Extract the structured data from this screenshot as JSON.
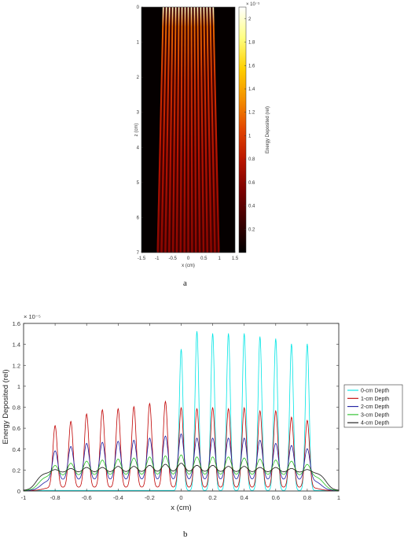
{
  "panel_labels": [
    "a",
    "b"
  ],
  "colors": {
    "cmap": [
      "#000000",
      "#3a0000",
      "#7a0000",
      "#b81400",
      "#e24400",
      "#f49000",
      "#ffd000",
      "#ffff80",
      "#ffffff"
    ],
    "series": [
      "#00e5e5",
      "#c00000",
      "#1a1aa0",
      "#22c022",
      "#111111"
    ]
  },
  "chart_data": [
    {
      "type": "heatmap",
      "title": "",
      "xlabel": "x (cm)",
      "ylabel": "z (cm)",
      "xlim": [
        -1.5,
        1.5
      ],
      "ylim": [
        0,
        7
      ],
      "y_reversed": true,
      "x_ticks": [
        "-1.5",
        "-1",
        "-0.5",
        "0",
        "0.5",
        "1",
        "1.5"
      ],
      "y_ticks": [
        "0",
        "1",
        "2",
        "3",
        "4",
        "5",
        "6",
        "7"
      ],
      "colorbar": {
        "label": "Energy Deposited (rel)",
        "exponent": "× 10⁻⁵",
        "range": [
          0,
          2.1
        ],
        "ticks": [
          "0.2",
          "0.4",
          "0.6",
          "0.8",
          "1",
          "1.2",
          "1.4",
          "1.6",
          "1.8",
          "2"
        ]
      },
      "beamlets": {
        "count": 17,
        "x_start_at_surface": [
          -0.8,
          0.8
        ],
        "x_extent_at_depth_7": [
          -0.98,
          0.98
        ],
        "peak_value_at_surface": 2.0,
        "peak_value_at_depth_7": 0.6
      }
    },
    {
      "type": "line",
      "title": "",
      "xlabel": "x (cm)",
      "ylabel": "Energy Deposited (rel)",
      "y_exponent": "× 10⁻⁵",
      "xlim": [
        -1,
        1
      ],
      "ylim": [
        0,
        1.6
      ],
      "x_ticks": [
        "-1",
        "-0.8",
        "-0.6",
        "-0.4",
        "-0.2",
        "0",
        "0.2",
        "0.4",
        "0.6",
        "0.8",
        "1"
      ],
      "y_ticks": [
        "0",
        "0.2",
        "0.4",
        "0.6",
        "0.8",
        "1",
        "1.2",
        "1.4",
        "1.6"
      ],
      "legend_position": "right",
      "peak_positions": [
        -0.8,
        -0.7,
        -0.6,
        -0.5,
        -0.4,
        -0.3,
        -0.2,
        -0.1,
        0.0,
        0.1,
        0.2,
        0.3,
        0.4,
        0.5,
        0.6,
        0.7,
        0.8
      ],
      "series": [
        {
          "name": "0-cm Depth",
          "peaks": [
            0.0,
            0.0,
            0.0,
            0.0,
            0.0,
            0.0,
            0.0,
            0.0,
            1.35,
            1.52,
            1.5,
            1.5,
            1.5,
            1.47,
            1.45,
            1.4,
            1.4
          ],
          "baseline": 0.0
        },
        {
          "name": "1-cm Depth",
          "peaks": [
            0.62,
            0.66,
            0.73,
            0.77,
            0.78,
            0.8,
            0.83,
            0.85,
            0.79,
            0.78,
            0.79,
            0.78,
            0.79,
            0.76,
            0.76,
            0.7,
            0.67
          ],
          "baseline": 0.03
        },
        {
          "name": "2-cm Depth",
          "peaks": [
            0.38,
            0.42,
            0.45,
            0.46,
            0.47,
            0.48,
            0.5,
            0.52,
            0.54,
            0.5,
            0.5,
            0.5,
            0.5,
            0.48,
            0.45,
            0.43,
            0.4
          ],
          "baseline": 0.1
        },
        {
          "name": "3-cm Depth",
          "peaks": [
            0.24,
            0.26,
            0.28,
            0.29,
            0.3,
            0.31,
            0.32,
            0.33,
            0.34,
            0.32,
            0.32,
            0.32,
            0.31,
            0.3,
            0.29,
            0.28,
            0.25
          ],
          "baseline": 0.14
        },
        {
          "name": "4-cm Depth",
          "peaks": [
            0.2,
            0.21,
            0.22,
            0.22,
            0.23,
            0.23,
            0.24,
            0.25,
            0.26,
            0.24,
            0.24,
            0.23,
            0.23,
            0.22,
            0.22,
            0.21,
            0.2
          ],
          "baseline": 0.17
        }
      ]
    }
  ]
}
